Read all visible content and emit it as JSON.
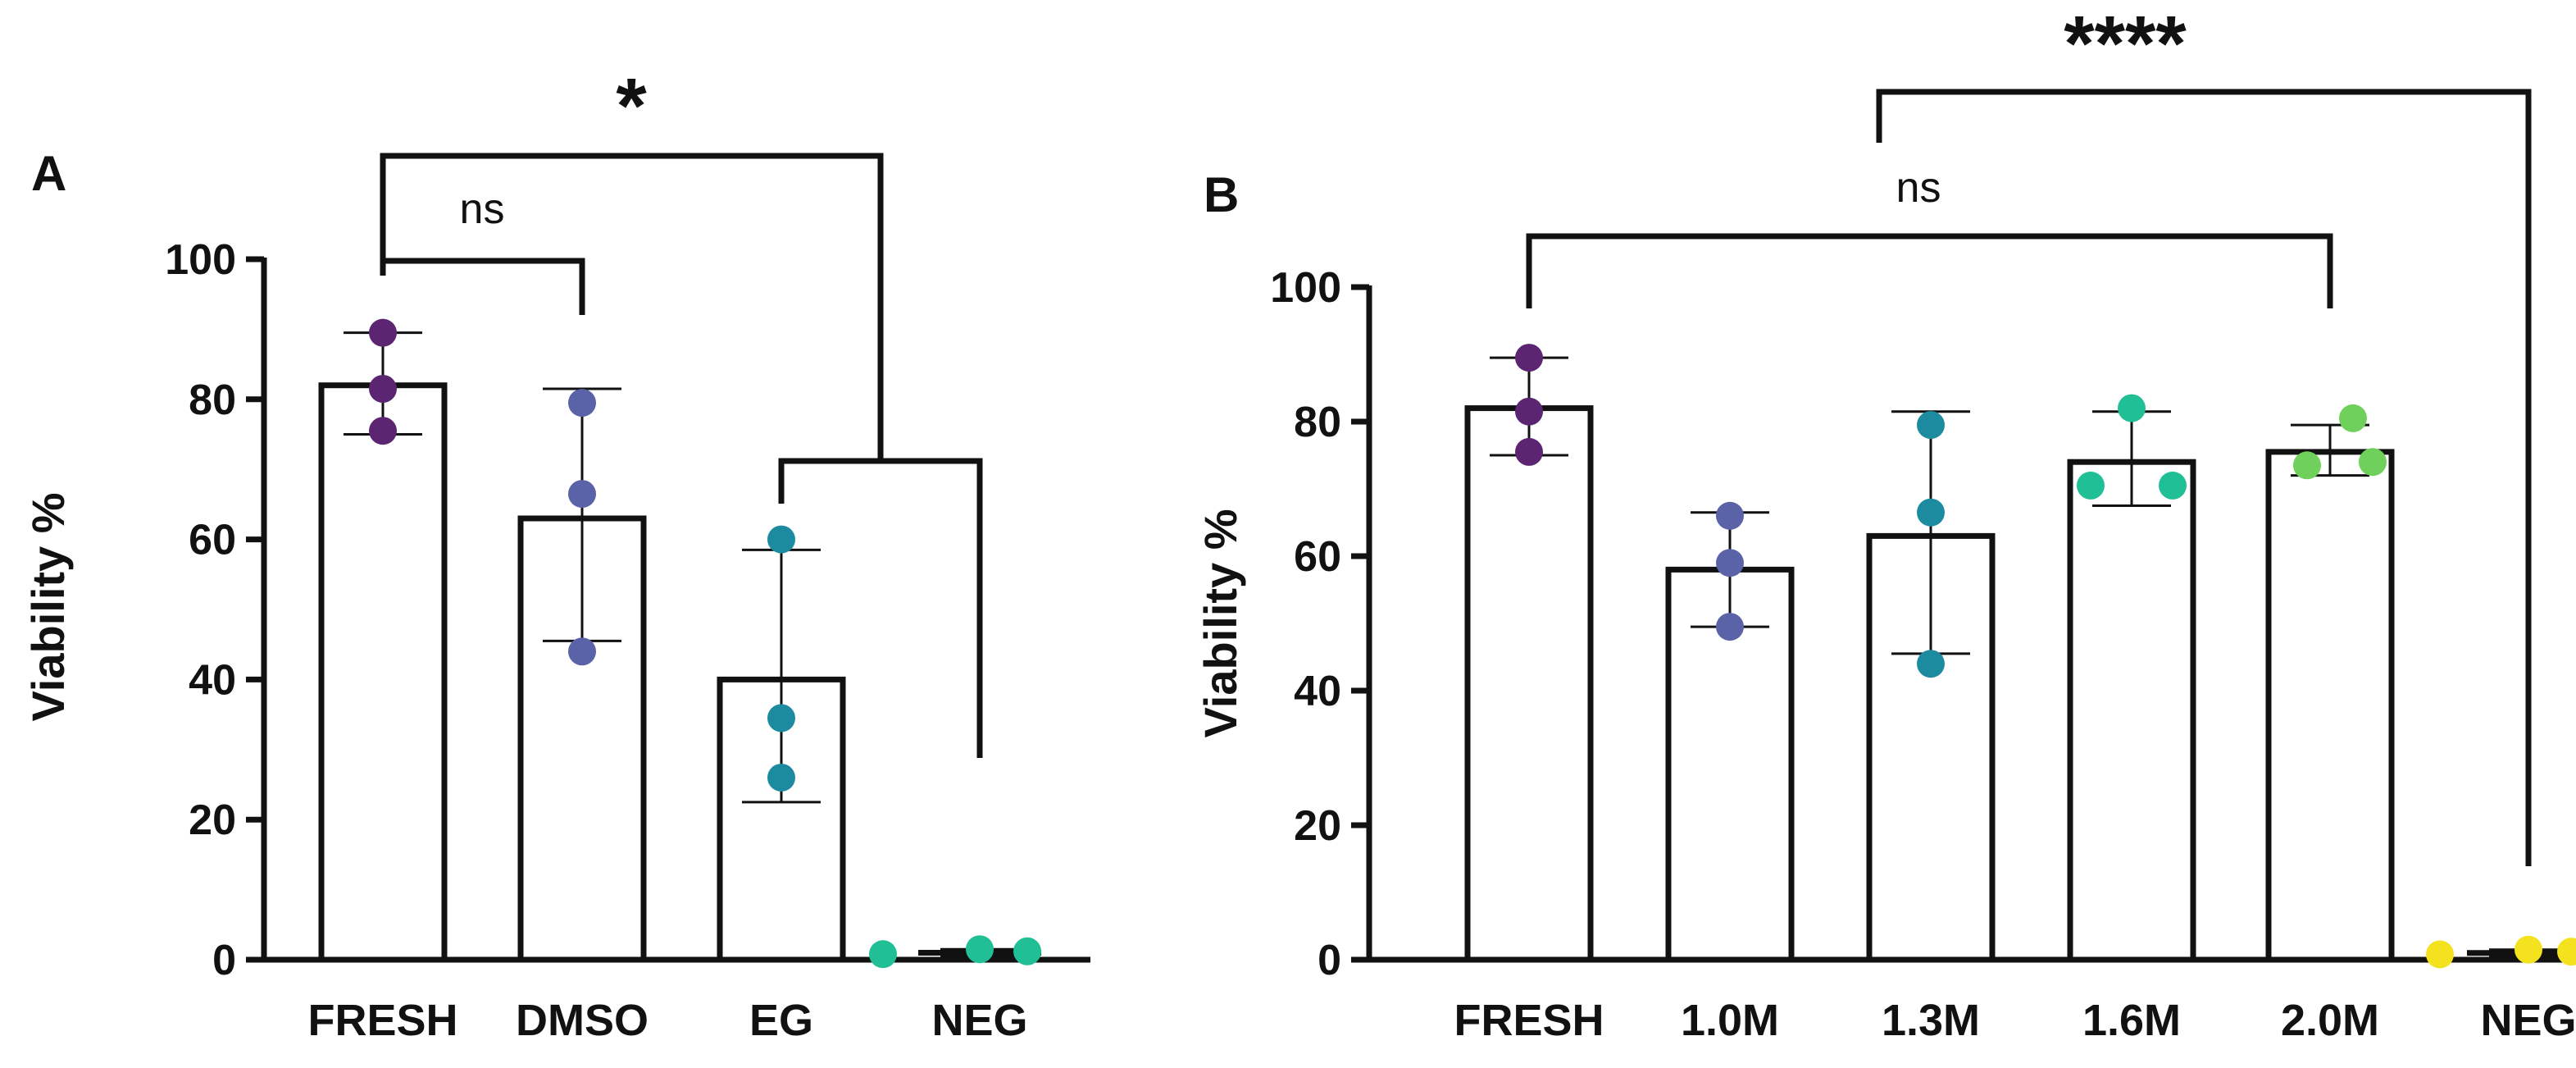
{
  "chart_data": [
    {
      "type": "bar",
      "panel": "A",
      "ylabel": "Viability %",
      "ylim": [
        0,
        100
      ],
      "yticks": [
        0,
        20,
        40,
        60,
        80,
        100
      ],
      "categories": [
        "FRESH",
        "DMSO",
        "EG",
        "NEG"
      ],
      "values": [
        82,
        63,
        40,
        1
      ],
      "error": [
        {
          "low": 75,
          "high": 89.5
        },
        {
          "low": 45.5,
          "high": 81.5
        },
        {
          "low": 22.5,
          "high": 58.5
        },
        {
          "low": 0.5,
          "high": 1.5
        }
      ],
      "points": [
        [
          89.5,
          81.5,
          75.5
        ],
        [
          79.5,
          66.5,
          44
        ],
        [
          60,
          34.5,
          26
        ],
        [
          0.8,
          1.5,
          1.2
        ]
      ],
      "point_colors": [
        "#5b2571",
        "#5a63a8",
        "#1c8b9f",
        "#21bf95"
      ],
      "comparisons": [
        {
          "groups": [
            "FRESH",
            "DMSO"
          ],
          "label": "ns"
        },
        {
          "groups": [
            "FRESH",
            "EG vs NEG"
          ],
          "label": "*"
        }
      ]
    },
    {
      "type": "bar",
      "panel": "B",
      "ylabel": "Viability %",
      "ylim": [
        0,
        100
      ],
      "yticks": [
        0,
        20,
        40,
        60,
        80,
        100
      ],
      "categories": [
        "FRESH",
        "1.0M",
        "1.3M",
        "1.6M",
        "2.0M",
        "NEG"
      ],
      "values": [
        82,
        58,
        63,
        74,
        75.5,
        1
      ],
      "error": [
        {
          "low": 75,
          "high": 89.5
        },
        {
          "low": 49.5,
          "high": 66.5
        },
        {
          "low": 45.5,
          "high": 81.5
        },
        {
          "low": 67.5,
          "high": 81.5
        },
        {
          "low": 72,
          "high": 79.5
        },
        {
          "low": 0.5,
          "high": 1.5
        }
      ],
      "points": [
        [
          89.5,
          81.5,
          75.5
        ],
        [
          66,
          59,
          49.5
        ],
        [
          79.5,
          66.5,
          44
        ],
        [
          82,
          70.5,
          70.5
        ],
        [
          80.5,
          73.5,
          74
        ],
        [
          0.8,
          1.5,
          1.2
        ]
      ],
      "point_colors": [
        "#5b2571",
        "#5a63a8",
        "#1c8b9f",
        "#21bf95",
        "#6fd15b",
        "#f5e21f"
      ],
      "comparisons": [
        {
          "groups": [
            "FRESH",
            "2.0M"
          ],
          "label": "ns"
        },
        {
          "groups": [
            "1.3M",
            "NEG"
          ],
          "label": "****"
        }
      ]
    }
  ]
}
